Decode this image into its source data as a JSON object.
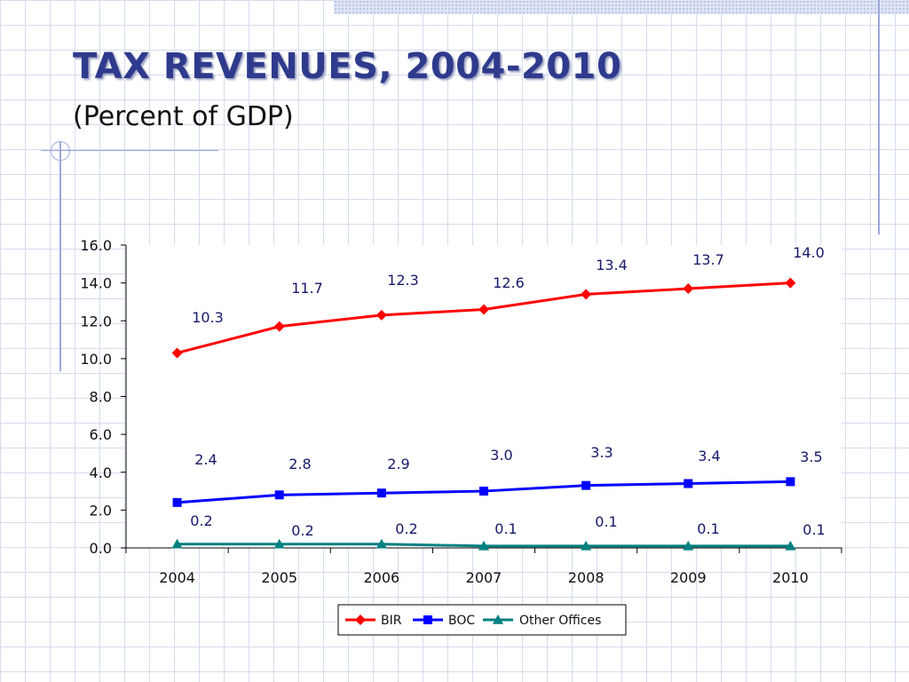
{
  "slide": {
    "title": "TAX REVENUES, 2004-2010",
    "subtitle": "(Percent of GDP)"
  },
  "chart_data": {
    "type": "line",
    "x": [
      "2004",
      "2005",
      "2006",
      "2007",
      "2008",
      "2009",
      "2010"
    ],
    "y_ticks": [
      "0.0",
      "2.0",
      "4.0",
      "6.0",
      "8.0",
      "10.0",
      "12.0",
      "14.0",
      "16.0"
    ],
    "ylim": [
      0,
      16
    ],
    "grid": false,
    "legend_position": "bottom",
    "series": [
      {
        "name": "BIR",
        "color": "#ff0000",
        "marker": "diamond",
        "values": [
          10.3,
          11.7,
          12.3,
          12.6,
          13.4,
          13.7,
          14.0
        ],
        "labels": [
          "10.3",
          "11.7",
          "12.3",
          "12.6",
          "13.4",
          "13.7",
          "14.0"
        ]
      },
      {
        "name": "BOC",
        "color": "#0000ff",
        "marker": "square",
        "values": [
          2.4,
          2.8,
          2.9,
          3.0,
          3.3,
          3.4,
          3.5
        ],
        "labels": [
          "2.4",
          "2.8",
          "2.9",
          "3.0",
          "3.3",
          "3.4",
          "3.5"
        ]
      },
      {
        "name": "Other Offices",
        "color": "#008080",
        "marker": "triangle",
        "values": [
          0.2,
          0.2,
          0.2,
          0.1,
          0.1,
          0.1,
          0.1
        ],
        "labels": [
          "0.2",
          "0.2",
          "0.2",
          "0.1",
          "0.1",
          "0.1",
          "0.1"
        ]
      }
    ]
  }
}
